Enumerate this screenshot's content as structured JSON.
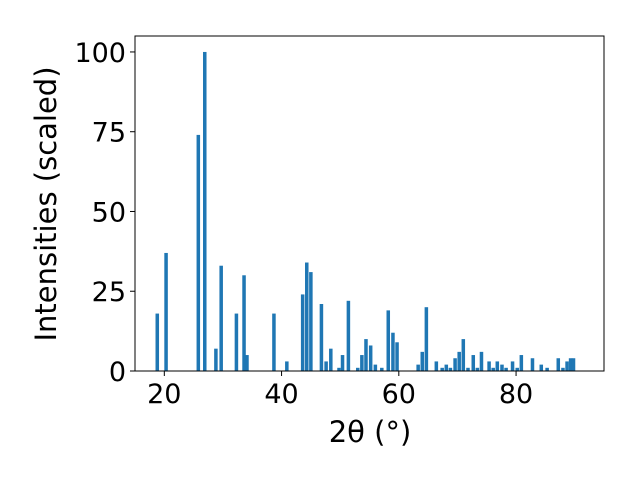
{
  "chart_data": {
    "type": "bar",
    "xlabel": "2θ (°)",
    "ylabel": "Intensities (scaled)",
    "xlim": [
      15,
      95
    ],
    "ylim": [
      0,
      105
    ],
    "xticks": [
      20,
      40,
      60,
      80
    ],
    "yticks": [
      0,
      25,
      50,
      75,
      100
    ],
    "bar_color": "#1f77b4",
    "grid": false,
    "bar_width": 0.6,
    "x": [
      18.8,
      20.3,
      25.8,
      26.9,
      28.8,
      29.7,
      32.3,
      33.6,
      34.1,
      38.7,
      40.9,
      43.6,
      44.3,
      45.0,
      46.8,
      47.6,
      48.4,
      49.8,
      50.4,
      51.4,
      53.0,
      53.7,
      54.4,
      55.2,
      56.0,
      57.1,
      58.2,
      59.0,
      59.7,
      63.3,
      64.0,
      64.7,
      66.4,
      67.4,
      68.1,
      68.8,
      69.6,
      70.3,
      71.0,
      71.8,
      72.7,
      73.4,
      74.1,
      75.4,
      76.1,
      76.8,
      77.6,
      78.3,
      79.4,
      80.2,
      80.9,
      82.8,
      84.3,
      85.3,
      87.2,
      88.0,
      88.7,
      89.3,
      89.8
    ],
    "values": [
      18,
      37,
      74,
      100,
      7,
      33,
      18,
      30,
      5,
      18,
      3,
      24,
      34,
      31,
      21,
      3,
      7,
      1,
      5,
      22,
      1,
      5,
      10,
      8,
      2,
      1,
      19,
      12,
      9,
      2,
      6,
      20,
      3,
      1,
      2,
      1,
      4,
      6,
      10,
      1,
      5,
      1,
      6,
      3,
      1,
      3,
      2,
      1,
      3,
      1,
      5,
      4,
      2,
      1,
      4,
      1,
      3,
      4,
      4
    ]
  }
}
